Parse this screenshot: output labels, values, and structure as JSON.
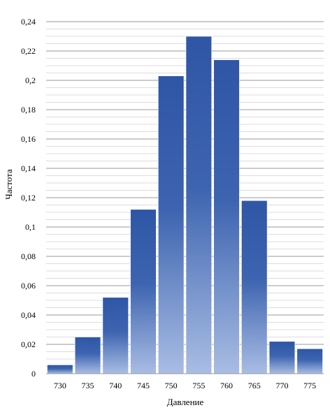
{
  "chart_data": {
    "type": "bar",
    "xlabel": "Давление",
    "ylabel": "Частота",
    "categories": [
      "730",
      "735",
      "740",
      "745",
      "750",
      "755",
      "760",
      "765",
      "770",
      "775"
    ],
    "values": [
      0.006,
      0.025,
      0.052,
      0.112,
      0.203,
      0.23,
      0.214,
      0.118,
      0.022,
      0.017
    ],
    "ylim": [
      0,
      0.24
    ],
    "y_ticks": [
      "0",
      "0,02",
      "0,04",
      "0,06",
      "0,08",
      "0,1",
      "0,12",
      "0,14",
      "0,16",
      "0,18",
      "0,2",
      "0,22",
      "0,24"
    ],
    "grid": true,
    "minor_grid": true,
    "legend": "none",
    "colors": {
      "bar_top": "#2f56a6",
      "bar_bottom": "#a9bde4",
      "bar_edge": "#ffffff",
      "major_grid": "#9a9a9a",
      "minor_grid": "#d0d0d0"
    }
  }
}
